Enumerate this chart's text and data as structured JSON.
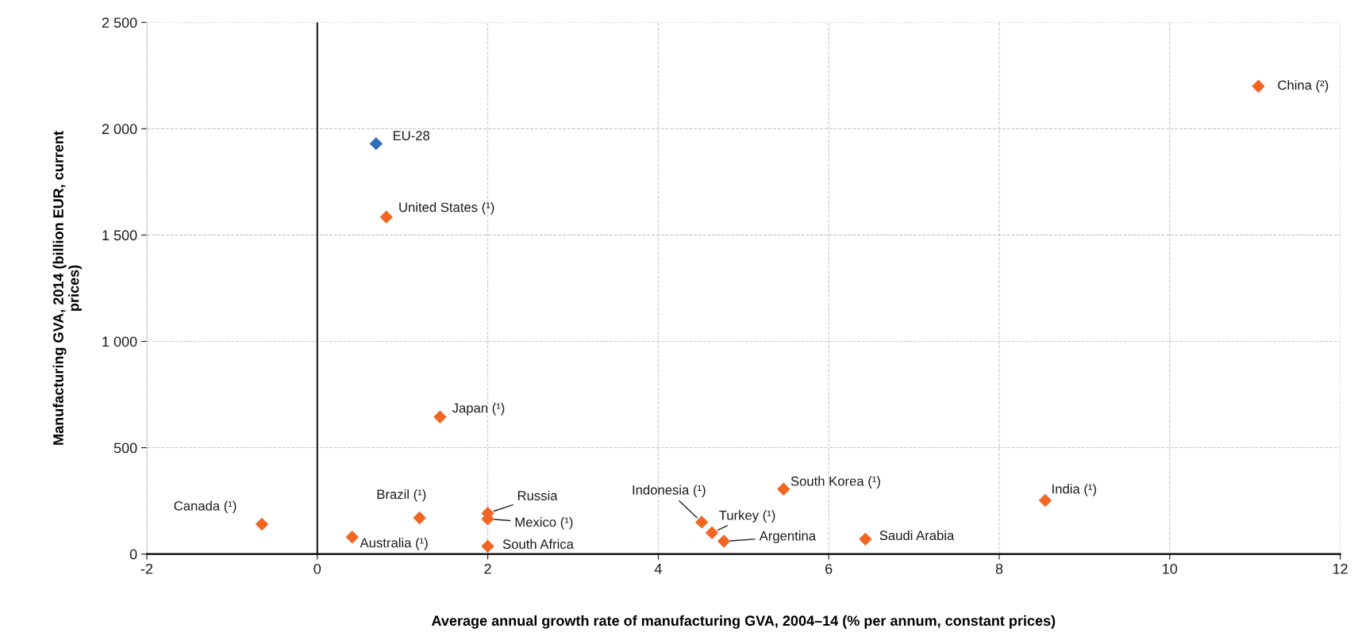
{
  "chart_data": {
    "type": "scatter",
    "xlabel": "Average annual growth rate of manufacturing GVA, 2004–14 (% per annum, constant prices)",
    "ylabel": "Manufacturing GVA, 2014 (billion EUR, current\nprices)",
    "xlim": [
      -2,
      12
    ],
    "xticks": [
      {
        "value": -2,
        "label": "-2"
      },
      0,
      2,
      4,
      6,
      8,
      10,
      12
    ],
    "ylim": [
      0,
      2500
    ],
    "yticks": [
      0,
      500,
      {
        "value": 1000,
        "label": "1 000"
      },
      {
        "value": 1500,
        "label": "1 500"
      },
      {
        "value": 2000,
        "label": "2 000"
      },
      {
        "value": 2500,
        "label": "2 500"
      }
    ],
    "grid": true,
    "legend": false,
    "marker": "diamond",
    "ref_lines": [
      {
        "axis": "x",
        "value": 0,
        "color": "#000000",
        "line_style": "solid"
      }
    ],
    "series": [
      {
        "name": "China (²)",
        "color": "#f26522",
        "x": [
          11.04
        ],
        "values": [
          2200
        ]
      },
      {
        "name": "EU-28",
        "color": "#2f6eba",
        "x": [
          0.69
        ],
        "values": [
          1930
        ]
      },
      {
        "name": "United States (¹)",
        "color": "#f26522",
        "x": [
          0.81
        ],
        "values": [
          1585
        ]
      },
      {
        "name": "Japan (¹)",
        "color": "#f26522",
        "x": [
          1.44
        ],
        "values": [
          645
        ]
      },
      {
        "name": "Canada (¹)",
        "color": "#f26522",
        "x": [
          -0.65
        ],
        "values": [
          140
        ]
      },
      {
        "name": "Australia (¹)",
        "color": "#f26522",
        "x": [
          0.41
        ],
        "values": [
          80
        ]
      },
      {
        "name": "Brazil (¹)",
        "color": "#f26522",
        "x": [
          1.2
        ],
        "values": [
          170
        ]
      },
      {
        "name": "Russia",
        "color": "#f26522",
        "x": [
          2.0
        ],
        "values": [
          192
        ]
      },
      {
        "name": "Mexico (¹)",
        "color": "#f26522",
        "x": [
          2.0
        ],
        "values": [
          165
        ]
      },
      {
        "name": "South Africa",
        "color": "#f26522",
        "x": [
          2.0
        ],
        "values": [
          37
        ]
      },
      {
        "name": "Indonesia (¹)",
        "color": "#f26522",
        "x": [
          4.51
        ],
        "values": [
          150
        ]
      },
      {
        "name": "Turkey (¹)",
        "color": "#f26522",
        "x": [
          4.63
        ],
        "values": [
          100
        ]
      },
      {
        "name": "Argentina",
        "color": "#f26522",
        "x": [
          4.77
        ],
        "values": [
          60
        ]
      },
      {
        "name": "South Korea (¹)",
        "color": "#f26522",
        "x": [
          5.47
        ],
        "values": [
          305
        ]
      },
      {
        "name": "Saudi Arabia",
        "color": "#f26522",
        "x": [
          6.43
        ],
        "values": [
          70
        ]
      },
      {
        "name": "India (¹)",
        "color": "#f26522",
        "x": [
          8.54
        ],
        "values": [
          252
        ]
      }
    ]
  }
}
